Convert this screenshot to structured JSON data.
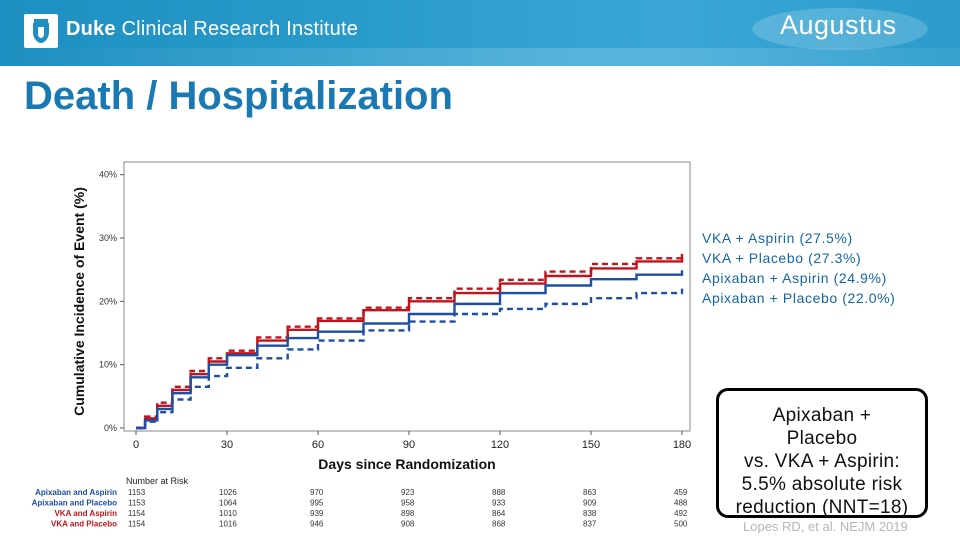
{
  "header": {
    "org_name_bold": "Duke",
    "org_name_rest": " Clinical Research Institute",
    "trial_name": "Augustus",
    "colors": {
      "banner": "#2a9ccc",
      "title": "#1a79b3"
    }
  },
  "page_title": "Death / Hospitalization",
  "legend": {
    "items": [
      {
        "label": "VKA + Aspirin (27.5%)"
      },
      {
        "label": "VKA + Placebo (27.3%)"
      },
      {
        "label": "Apixaban + Aspirin (24.9%)"
      },
      {
        "label": "Apixaban + Placebo (22.0%)"
      }
    ]
  },
  "callout": {
    "lines": [
      "Apixaban +",
      "Placebo",
      "vs. VKA + Aspirin:",
      "5.5% absolute risk",
      "reduction (NNT=18)"
    ]
  },
  "citation": "Lopes RD, et al. NEJM 2019",
  "chart_data": {
    "type": "line",
    "ylabel": "Cumulative Incidence of Event (%)",
    "xlabel": "Days since Randomization",
    "x_ticks": [
      0,
      30,
      60,
      90,
      120,
      150,
      180
    ],
    "y_ticks": [
      0,
      10,
      20,
      30,
      40
    ],
    "y_tick_labels": [
      "0%",
      "10%",
      "20%",
      "30%",
      "40%"
    ],
    "xlim": [
      0,
      180
    ],
    "ylim": [
      0,
      42
    ],
    "series": [
      {
        "name": "VKA and Aspirin",
        "color": "#c0141c",
        "style": "solid",
        "x": [
          0,
          3,
          7,
          12,
          18,
          24,
          30,
          40,
          50,
          60,
          75,
          90,
          105,
          120,
          135,
          150,
          165,
          180
        ],
        "y": [
          0,
          1.5,
          3.5,
          6,
          8.5,
          10.5,
          11.8,
          13.8,
          15.5,
          16.9,
          18.6,
          20.0,
          21.3,
          22.8,
          24.0,
          25.2,
          26.3,
          27.5
        ]
      },
      {
        "name": "VKA and Placebo",
        "color": "#c0141c",
        "style": "dashed",
        "x": [
          0,
          3,
          7,
          12,
          18,
          24,
          30,
          40,
          50,
          60,
          75,
          90,
          105,
          120,
          135,
          150,
          165,
          180
        ],
        "y": [
          0,
          1.8,
          4.0,
          6.5,
          9.0,
          11.0,
          12.2,
          14.3,
          16.0,
          17.3,
          19.0,
          20.5,
          22.0,
          23.4,
          24.7,
          25.9,
          26.8,
          27.3
        ]
      },
      {
        "name": "Apixaban and Aspirin",
        "color": "#1e4fa3",
        "style": "solid",
        "x": [
          0,
          3,
          7,
          12,
          18,
          24,
          30,
          40,
          50,
          60,
          75,
          90,
          105,
          120,
          135,
          150,
          165,
          180
        ],
        "y": [
          0,
          1.2,
          3.0,
          5.5,
          8.0,
          10.0,
          11.5,
          13.0,
          14.2,
          15.2,
          16.5,
          18.0,
          19.6,
          21.3,
          22.5,
          23.5,
          24.2,
          24.9
        ]
      },
      {
        "name": "Apixaban and Placebo",
        "color": "#1e4fa3",
        "style": "dashed",
        "x": [
          0,
          3,
          7,
          12,
          18,
          24,
          30,
          40,
          50,
          60,
          75,
          90,
          105,
          120,
          135,
          150,
          165,
          180
        ],
        "y": [
          0,
          1.0,
          2.5,
          4.5,
          6.5,
          8.2,
          9.5,
          11.0,
          12.4,
          13.8,
          15.4,
          16.8,
          18.0,
          18.8,
          19.6,
          20.5,
          21.3,
          22.0
        ]
      }
    ],
    "risk_table": {
      "header": "Number at Risk",
      "rows": [
        {
          "label": "Apixaban and Aspirin",
          "color": "#1e4fa3",
          "values": [
            "1153",
            "1026",
            "970",
            "923",
            "888",
            "863",
            "459"
          ]
        },
        {
          "label": "Apixaban and Placebo",
          "color": "#1e4fa3",
          "values": [
            "1153",
            "1064",
            "995",
            "958",
            "933",
            "909",
            "488"
          ]
        },
        {
          "label": "VKA and Aspirin",
          "color": "#c0141c",
          "values": [
            "1154",
            "1010",
            "939",
            "898",
            "864",
            "838",
            "492"
          ]
        },
        {
          "label": "VKA and Placebo",
          "color": "#c0141c",
          "values": [
            "1154",
            "1016",
            "946",
            "908",
            "868",
            "837",
            "500"
          ]
        }
      ]
    }
  }
}
